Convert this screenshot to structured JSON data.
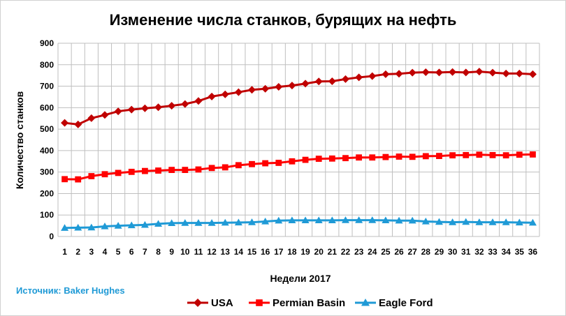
{
  "chart_data": {
    "type": "line",
    "title": "Изменение числа станков, бурящих на нефть",
    "xlabel": "Недели 2017",
    "ylabel": "Количество станков",
    "source": "Источник: Baker Hughes",
    "x": [
      1,
      2,
      3,
      4,
      5,
      6,
      7,
      8,
      9,
      10,
      11,
      12,
      13,
      14,
      15,
      16,
      17,
      18,
      19,
      20,
      21,
      22,
      23,
      24,
      25,
      26,
      27,
      28,
      29,
      30,
      31,
      32,
      33,
      34,
      35,
      36
    ],
    "ylim": [
      0,
      900
    ],
    "yticks": [
      0,
      100,
      200,
      300,
      400,
      500,
      600,
      700,
      800,
      900
    ],
    "grid": true,
    "legend_position": "bottom",
    "series": [
      {
        "name": "USA",
        "color": "#c00000",
        "marker": "diamond",
        "values": [
          529,
          522,
          551,
          566,
          583,
          591,
          597,
          602,
          609,
          617,
          631,
          652,
          662,
          672,
          683,
          688,
          697,
          703,
          712,
          722,
          723,
          733,
          741,
          747,
          756,
          758,
          763,
          765,
          764,
          766,
          764,
          768,
          763,
          759,
          759,
          756
        ]
      },
      {
        "name": "Permian Basin",
        "color": "#ff0000",
        "marker": "square",
        "values": [
          267,
          266,
          281,
          290,
          296,
          301,
          305,
          307,
          310,
          310,
          312,
          319,
          322,
          332,
          337,
          341,
          343,
          350,
          357,
          362,
          363,
          365,
          368,
          368,
          370,
          372,
          371,
          374,
          375,
          378,
          379,
          381,
          379,
          378,
          381,
          382
        ]
      },
      {
        "name": "Eagle Ford",
        "color": "#1f9ad6",
        "marker": "triangle",
        "values": [
          40,
          41,
          42,
          47,
          50,
          52,
          54,
          59,
          62,
          63,
          63,
          63,
          64,
          65,
          66,
          70,
          74,
          75,
          75,
          75,
          75,
          76,
          76,
          76,
          75,
          74,
          74,
          70,
          68,
          66,
          68,
          66,
          66,
          66,
          65,
          64
        ]
      }
    ]
  }
}
